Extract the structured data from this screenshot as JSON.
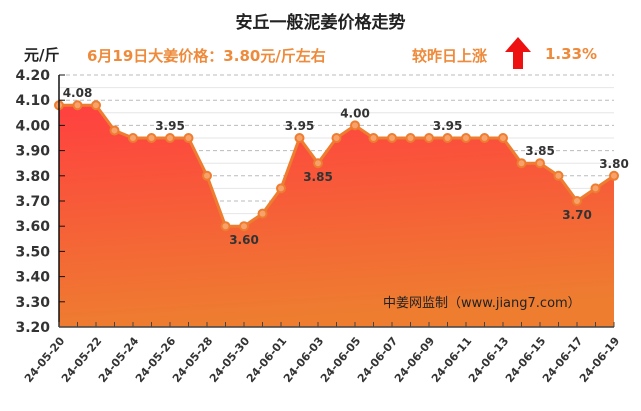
{
  "header": {
    "title": "安丘一般泥姜价格走势",
    "unit": "元/斤",
    "price_note": "6月19日大姜价格：3.80元/斤左右",
    "change_label": "较昨日上涨",
    "change_icon": "up-arrow-icon",
    "change_pct": "1.33%"
  },
  "watermark": "中姜网监制（www.jiang7.com）",
  "colors": {
    "line": "#ee7d30",
    "fill_top": "#ff4040",
    "fill_bottom": "#ee7d30",
    "accent_text": "#ee8a3a",
    "arrow": "#ee1111"
  },
  "chart_data": {
    "type": "area",
    "title": "安丘一般泥姜价格走势",
    "xlabel": "",
    "ylabel": "元/斤",
    "ylim": [
      3.2,
      4.2
    ],
    "yticks": [
      "4.20",
      "4.10",
      "4.00",
      "3.90",
      "3.80",
      "3.70",
      "3.60",
      "3.50",
      "3.40",
      "3.30",
      "3.20"
    ],
    "grid": true,
    "x": [
      "24-05-20",
      "24-05-21",
      "24-05-22",
      "24-05-23",
      "24-05-24",
      "24-05-25",
      "24-05-26",
      "24-05-27",
      "24-05-28",
      "24-05-29",
      "24-05-30",
      "24-05-31",
      "24-06-01",
      "24-06-02",
      "24-06-03",
      "24-06-04",
      "24-06-05",
      "24-06-06",
      "24-06-07",
      "24-06-08",
      "24-06-09",
      "24-06-10",
      "24-06-11",
      "24-06-12",
      "24-06-13",
      "24-06-14",
      "24-06-15",
      "24-06-16",
      "24-06-17",
      "24-06-18",
      "24-06-19"
    ],
    "xtick_labels": [
      "24-05-20",
      "24-05-22",
      "24-05-24",
      "24-05-26",
      "24-05-28",
      "24-05-30",
      "24-06-01",
      "24-06-03",
      "24-06-05",
      "24-06-07",
      "24-06-09",
      "24-06-11",
      "24-06-13",
      "24-06-15",
      "24-06-17",
      "24-06-19"
    ],
    "values": [
      4.08,
      4.08,
      4.08,
      3.98,
      3.95,
      3.95,
      3.95,
      3.95,
      3.8,
      3.6,
      3.6,
      3.65,
      3.75,
      3.95,
      3.85,
      3.95,
      4.0,
      3.95,
      3.95,
      3.95,
      3.95,
      3.95,
      3.95,
      3.95,
      3.95,
      3.85,
      3.85,
      3.8,
      3.7,
      3.75,
      3.8
    ],
    "annotations": [
      {
        "index": 1,
        "text": "4.08",
        "pos": "above"
      },
      {
        "index": 6,
        "text": "3.95",
        "pos": "above"
      },
      {
        "index": 10,
        "text": "3.60",
        "pos": "below"
      },
      {
        "index": 13,
        "text": "3.95",
        "pos": "above"
      },
      {
        "index": 14,
        "text": "3.85",
        "pos": "below"
      },
      {
        "index": 16,
        "text": "4.00",
        "pos": "above"
      },
      {
        "index": 21,
        "text": "3.95",
        "pos": "above"
      },
      {
        "index": 26,
        "text": "3.85",
        "pos": "above"
      },
      {
        "index": 28,
        "text": "3.70",
        "pos": "below"
      },
      {
        "index": 30,
        "text": "3.80",
        "pos": "above"
      }
    ]
  }
}
